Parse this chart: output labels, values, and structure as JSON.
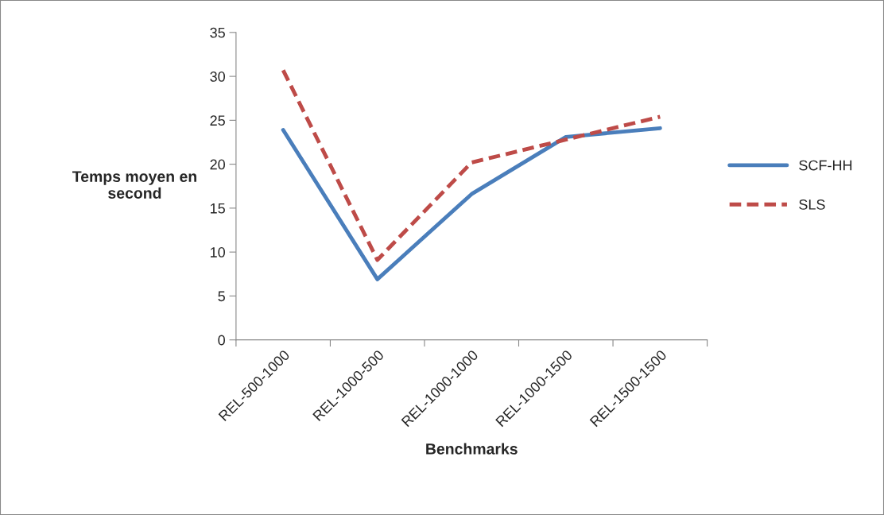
{
  "chart_data": {
    "type": "line",
    "xlabel": "Benchmarks",
    "ylabel": "Temps moyen en\nsecond",
    "categories": [
      "REL-500-1000",
      "REL-1000-500",
      "REL-1000-1000",
      "REL-1000-1500",
      "REL-1500-1500"
    ],
    "series": [
      {
        "name": "SCF-HH",
        "color": "#4a7ebb",
        "line_style": "solid",
        "values": [
          23.9,
          6.9,
          16.6,
          23.1,
          24.1
        ]
      },
      {
        "name": "SLS",
        "color": "#be4b48",
        "line_style": "dashed",
        "values": [
          30.7,
          9.1,
          20.2,
          22.8,
          25.4
        ]
      }
    ],
    "ylim": [
      0,
      35
    ],
    "yticks": [
      0,
      5,
      10,
      15,
      20,
      25,
      30,
      35
    ],
    "grid": false,
    "legend": "right",
    "marker": "none"
  }
}
